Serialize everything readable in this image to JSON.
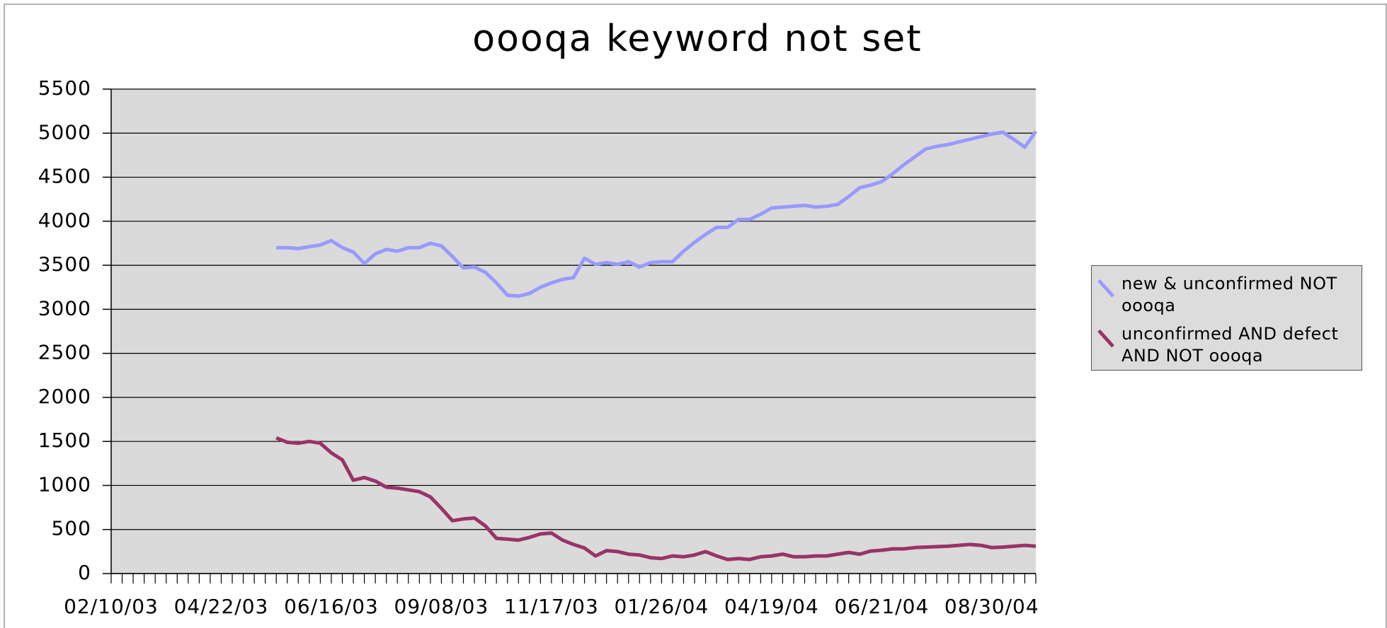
{
  "chart_data": {
    "type": "line",
    "title": "oooqa keyword not set",
    "categories": [
      "02/10/03",
      null,
      null,
      null,
      null,
      null,
      null,
      null,
      null,
      null,
      "04/22/03",
      null,
      null,
      null,
      null,
      null,
      null,
      null,
      null,
      null,
      "06/16/03",
      null,
      null,
      null,
      null,
      null,
      null,
      null,
      null,
      null,
      "09/08/03",
      null,
      null,
      null,
      null,
      null,
      null,
      null,
      null,
      null,
      "11/17/03",
      null,
      null,
      null,
      null,
      null,
      null,
      null,
      null,
      null,
      "01/26/04",
      null,
      null,
      null,
      null,
      null,
      null,
      null,
      null,
      null,
      "04/19/04",
      null,
      null,
      null,
      null,
      null,
      null,
      null,
      null,
      null,
      "06/21/04",
      null,
      null,
      null,
      null,
      null,
      null,
      null,
      null,
      null,
      "08/30/04",
      null,
      null,
      null,
      null
    ],
    "series": [
      {
        "name": "new & unconfirmed NOT oooqa",
        "color": "#9999ff",
        "values": [
          null,
          null,
          null,
          null,
          null,
          null,
          null,
          null,
          null,
          null,
          null,
          null,
          null,
          null,
          null,
          3700,
          3700,
          3690,
          3710,
          3730,
          3780,
          3700,
          3650,
          3520,
          3630,
          3680,
          3660,
          3700,
          3700,
          3750,
          3720,
          3600,
          3470,
          3480,
          3420,
          3300,
          3160,
          3150,
          3180,
          3250,
          3300,
          3340,
          3360,
          3580,
          3510,
          3530,
          3510,
          3540,
          3480,
          3530,
          3540,
          3540,
          3660,
          3760,
          3850,
          3930,
          3930,
          4020,
          4020,
          4080,
          4150,
          4160,
          4170,
          4180,
          4160,
          4170,
          4190,
          4280,
          4380,
          4410,
          4450,
          4540,
          4640,
          4730,
          4820,
          4850,
          4870,
          4900,
          4930,
          4960,
          4990,
          5010,
          4930,
          4840,
          5020
        ]
      },
      {
        "name": "unconfirmed AND defect AND NOT oooqa",
        "color": "#993366",
        "values": [
          null,
          null,
          null,
          null,
          null,
          null,
          null,
          null,
          null,
          null,
          null,
          null,
          null,
          null,
          null,
          1540,
          1490,
          1480,
          1500,
          1480,
          1370,
          1290,
          1060,
          1090,
          1050,
          980,
          970,
          950,
          930,
          870,
          740,
          600,
          620,
          630,
          540,
          400,
          390,
          380,
          410,
          450,
          460,
          380,
          330,
          290,
          200,
          260,
          250,
          220,
          210,
          180,
          170,
          200,
          190,
          210,
          250,
          200,
          160,
          170,
          160,
          190,
          200,
          220,
          190,
          190,
          200,
          200,
          220,
          240,
          220,
          255,
          265,
          280,
          280,
          295,
          300,
          305,
          310,
          320,
          330,
          320,
          295,
          300,
          310,
          320,
          310
        ]
      }
    ],
    "ylim": [
      0,
      5500
    ],
    "yticks": [
      0,
      500,
      1000,
      1500,
      2000,
      2500,
      3000,
      3500,
      4000,
      4500,
      5000,
      5500
    ],
    "grid": true,
    "legend": "right"
  }
}
